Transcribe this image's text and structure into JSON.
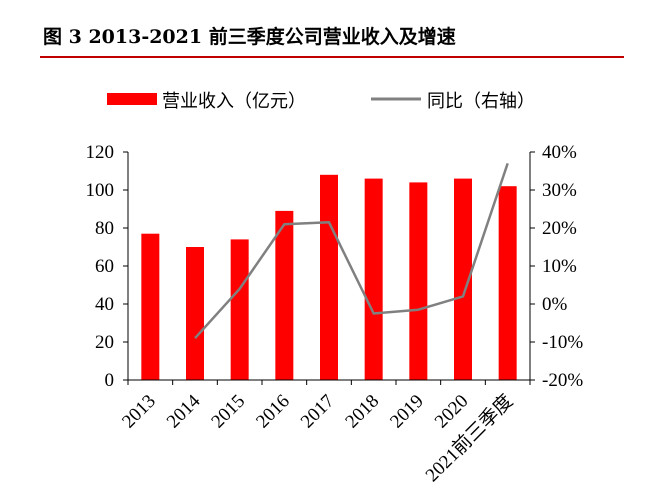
{
  "figure": {
    "title": "图 3 2013-2021 前三季度公司营业收入及增速"
  },
  "chart_data": {
    "type": "bar",
    "categories": [
      "2013",
      "2014",
      "2015",
      "2016",
      "2017",
      "2018",
      "2019",
      "2020",
      "2021前三季度"
    ],
    "series": [
      {
        "name": "营业收入（亿元）",
        "kind": "bar",
        "axis": "left",
        "color": "#ff0000",
        "values": [
          77,
          70,
          74,
          89,
          108,
          106,
          104,
          106,
          102
        ]
      },
      {
        "name": "同比（右轴）",
        "kind": "line",
        "axis": "right",
        "color": "#808080",
        "values": [
          null,
          -9,
          4,
          21,
          21.5,
          -2.5,
          -1.5,
          2,
          37
        ]
      }
    ],
    "left_axis": {
      "ylim": [
        0,
        120
      ],
      "ticks": [
        0,
        20,
        40,
        60,
        80,
        100,
        120
      ]
    },
    "right_axis": {
      "ylim": [
        -20,
        40
      ],
      "ticks": [
        "-20%",
        "-10%",
        "0%",
        "10%",
        "20%",
        "30%",
        "40%"
      ]
    },
    "grid": false,
    "legend_position": "top"
  },
  "colors": {
    "accent": "#c00000",
    "bar": "#ff0000",
    "line": "#808080"
  }
}
